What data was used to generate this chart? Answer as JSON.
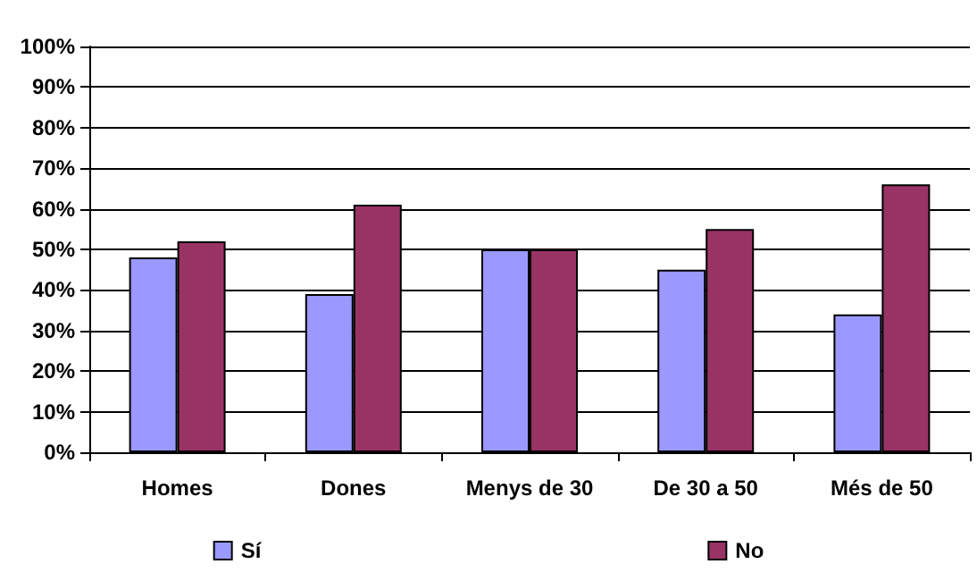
{
  "chart_data": {
    "type": "bar",
    "categories": [
      "Homes",
      "Dones",
      "Menys de 30",
      "De 30 a 50",
      "Més de 50"
    ],
    "series": [
      {
        "name": "Sí",
        "color": "#9999ff",
        "values": [
          48,
          39,
          50,
          45,
          34
        ]
      },
      {
        "name": "No",
        "color": "#993366",
        "values": [
          52,
          61,
          50,
          55,
          66
        ]
      }
    ],
    "ylim": [
      0,
      100
    ],
    "yticks": [
      {
        "value": 0,
        "label": "0%"
      },
      {
        "value": 10,
        "label": "10%"
      },
      {
        "value": 20,
        "label": "20%"
      },
      {
        "value": 30,
        "label": "30%"
      },
      {
        "value": 40,
        "label": "40%"
      },
      {
        "value": 50,
        "label": "50%"
      },
      {
        "value": 60,
        "label": "60%"
      },
      {
        "value": 70,
        "label": "70%"
      },
      {
        "value": 80,
        "label": "80%"
      },
      {
        "value": 90,
        "label": "90%"
      },
      {
        "value": 100,
        "label": "100%"
      }
    ],
    "grid": "y",
    "legend": "bottom"
  }
}
